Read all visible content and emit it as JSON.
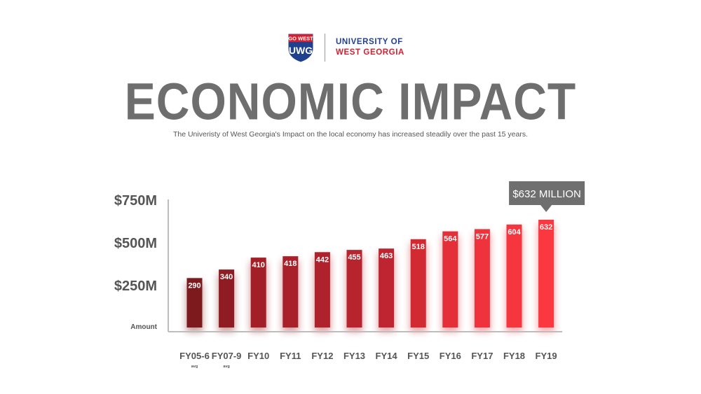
{
  "brand": {
    "shield_top": "GO WEST",
    "shield_letters": "UWG",
    "name_line1": "UNIVERSITY OF",
    "name_line2": "WEST GEORGIA",
    "colors": {
      "blue": "#1f3f8f",
      "red": "#d32030"
    }
  },
  "header": {
    "title": "ECONOMIC IMPACT",
    "subtitle": "The Univeristy of West Georgia's Impact on the local economy has increased steadily over the past 15 years."
  },
  "chart_data": {
    "type": "bar",
    "categories": [
      "FY05-6",
      "FY07-9",
      "FY10",
      "FY11",
      "FY12",
      "FY13",
      "FY14",
      "FY15",
      "FY16",
      "FY17",
      "FY18",
      "FY19"
    ],
    "category_notes": [
      "avg",
      "avg",
      "",
      "",
      "",
      "",
      "",
      "",
      "",
      "",
      "",
      ""
    ],
    "values": [
      290,
      340,
      410,
      418,
      442,
      455,
      463,
      518,
      564,
      577,
      604,
      632
    ],
    "data_labels": [
      "290",
      "340",
      "410",
      "418",
      "442",
      "455",
      "463",
      "518",
      "564",
      "577",
      "604",
      "632"
    ],
    "yticks": [
      {
        "value": 250,
        "label": "$250M"
      },
      {
        "value": 500,
        "label": "$500M"
      },
      {
        "value": 750,
        "label": "$750M"
      }
    ],
    "ylabel": "Amount",
    "ylim": [
      0,
      800
    ],
    "grid": false,
    "bar_colors": [
      "#7d1a1e",
      "#8e1c22",
      "#a21f27",
      "#a8202a",
      "#b0222b",
      "#b8242e",
      "#bf2530",
      "#d22a33",
      "#e52f38",
      "#ee333c",
      "#f5363f",
      "#fb3840"
    ],
    "callout": {
      "category": "FY19",
      "text": "$632 MILLION",
      "color": "#6f6f6f"
    }
  }
}
